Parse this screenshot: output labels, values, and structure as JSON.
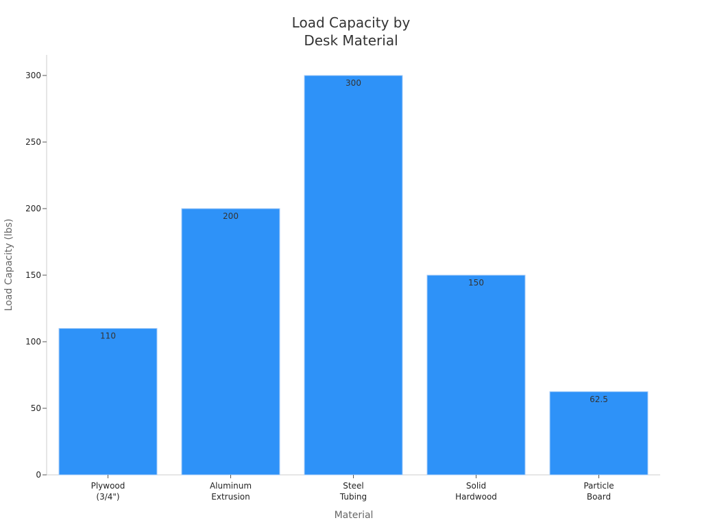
{
  "chart_data": {
    "type": "bar",
    "title": [
      "Load Capacity by",
      "Desk Material"
    ],
    "xlabel": "Material",
    "ylabel": "Load Capacity (lbs)",
    "categories": [
      [
        "Plywood",
        "(3/4\")"
      ],
      [
        "Aluminum",
        "Extrusion"
      ],
      [
        "Steel",
        "Tubing"
      ],
      [
        "Solid",
        "Hardwood"
      ],
      [
        "Particle",
        "Board"
      ]
    ],
    "values": [
      110,
      200,
      300,
      150,
      62.5
    ],
    "data_labels": [
      "110",
      "200",
      "300",
      "150",
      "62.5"
    ],
    "yticks": [
      0,
      50,
      100,
      150,
      200,
      250,
      300
    ],
    "ylim": [
      0,
      315
    ],
    "grid": false,
    "bar_color": "#2E92F8"
  }
}
